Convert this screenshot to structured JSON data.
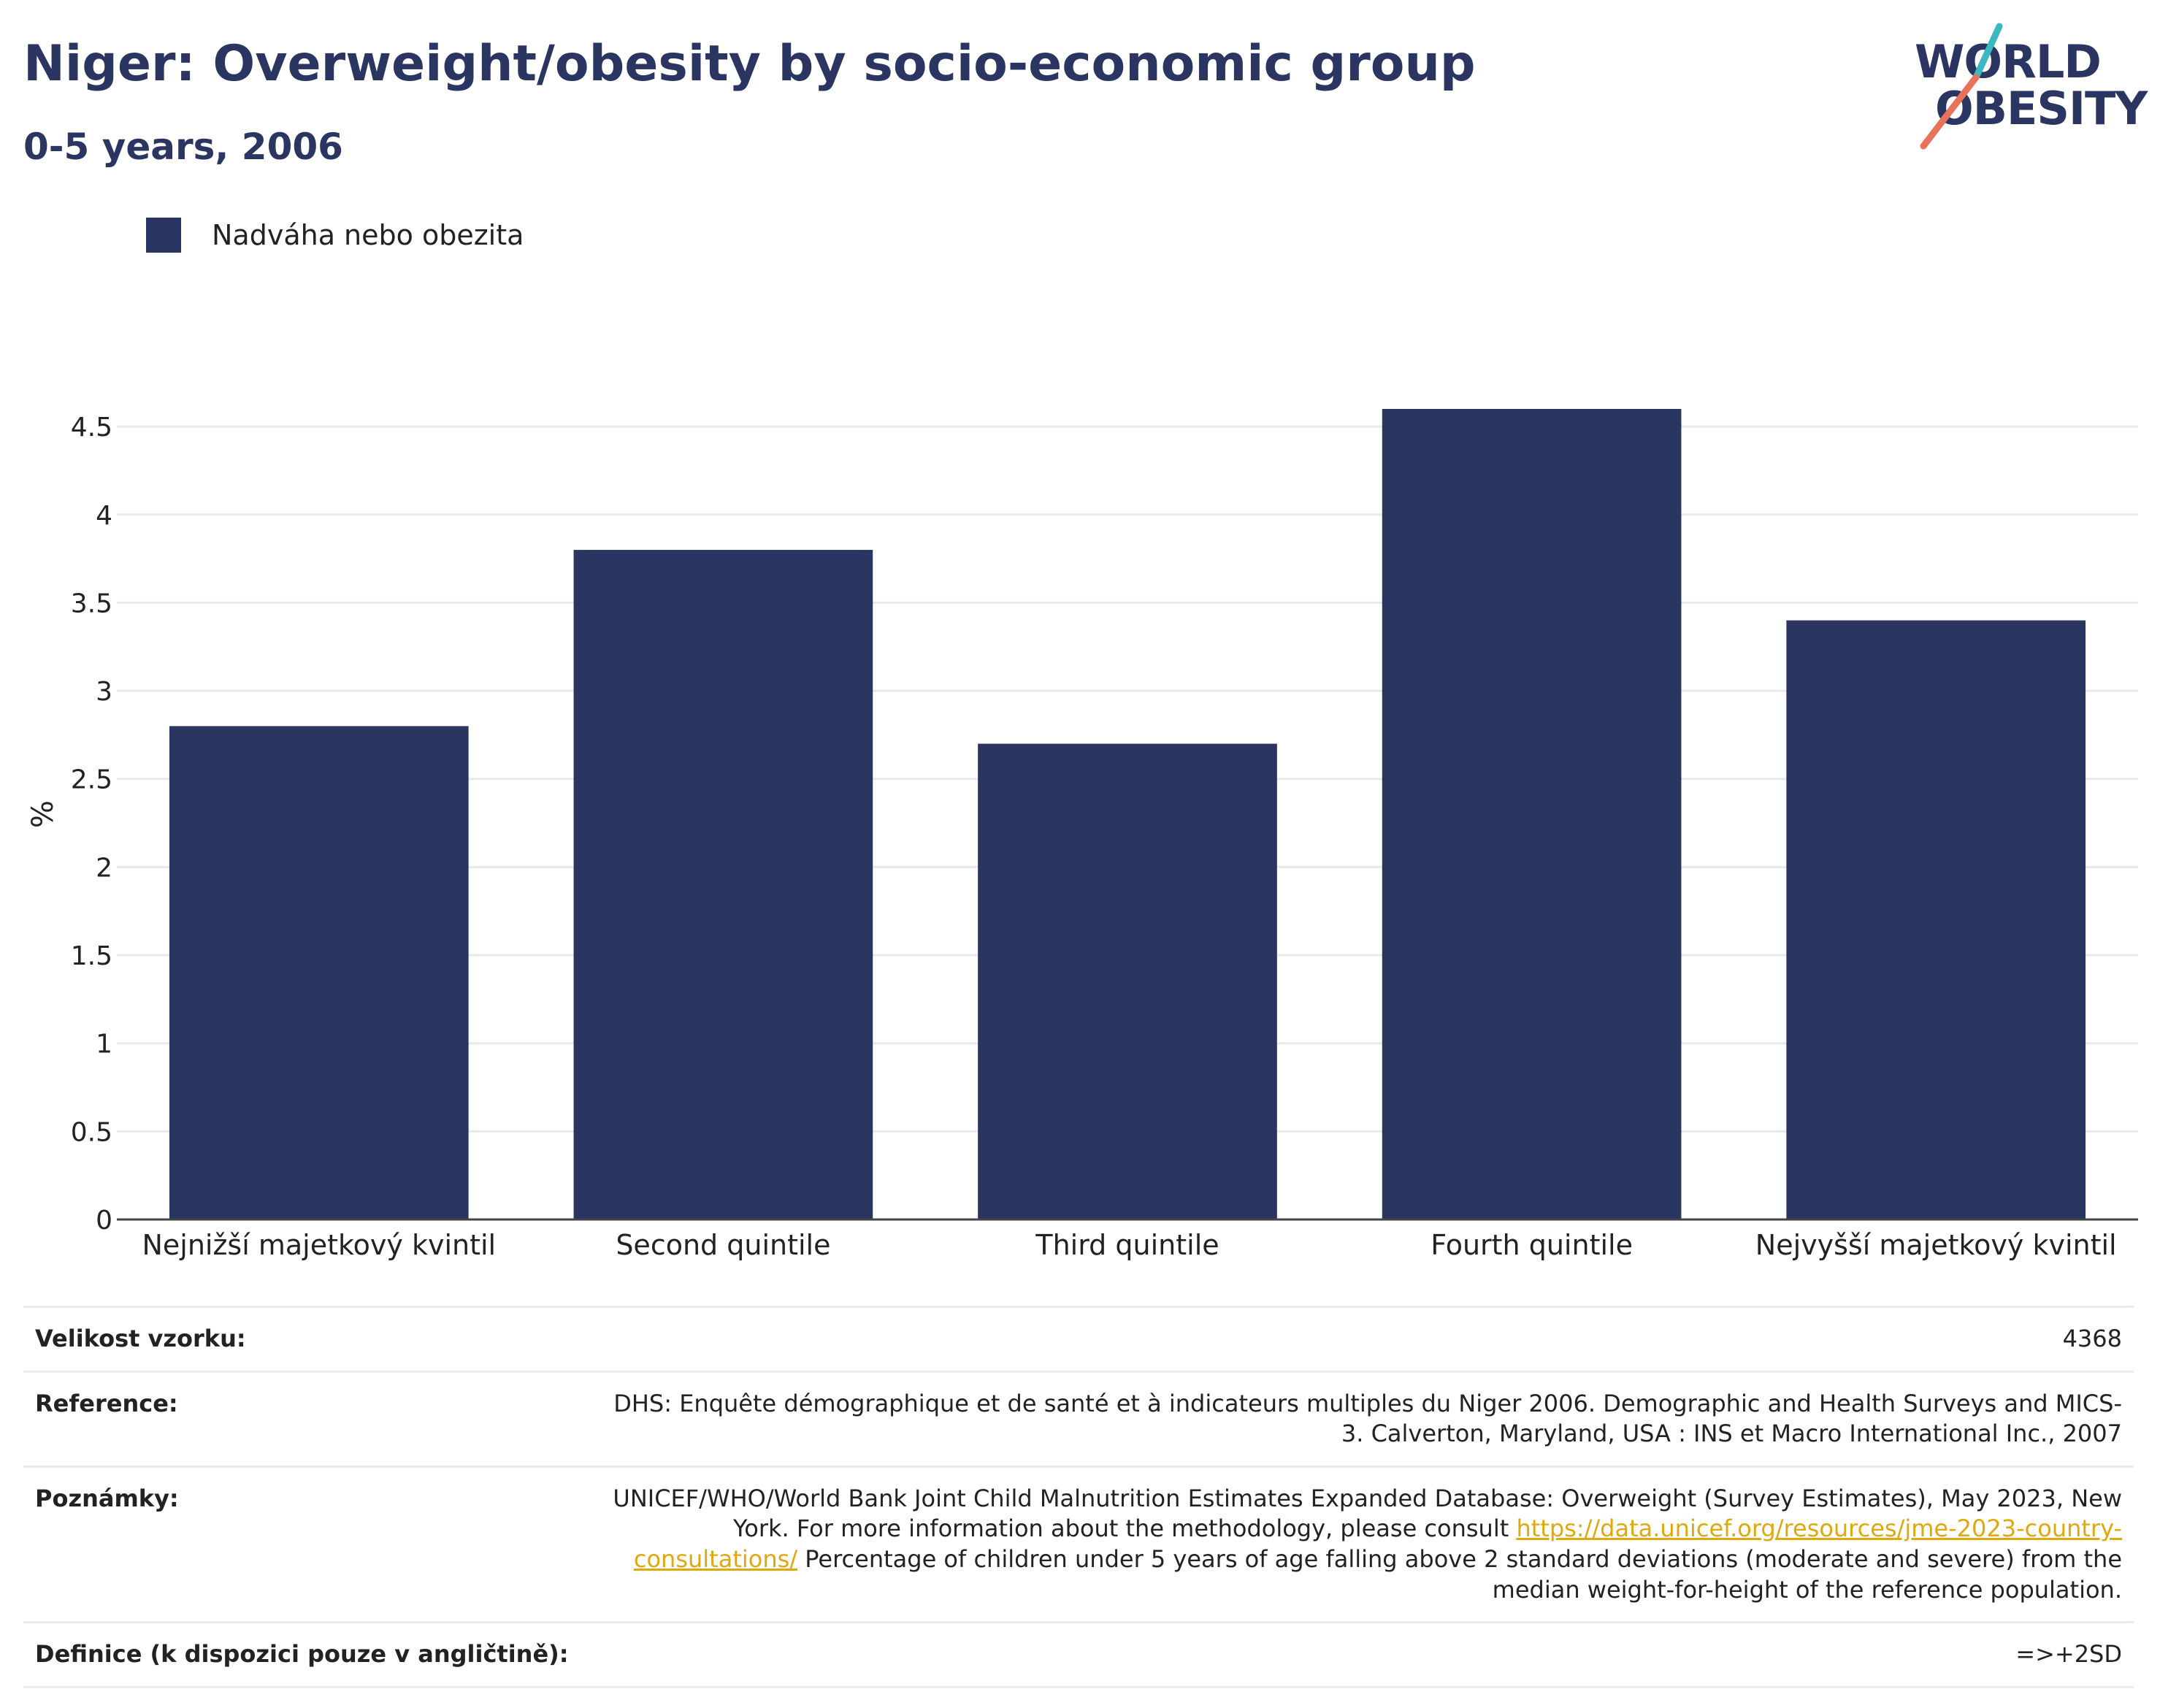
{
  "header": {
    "title": "Niger: Overweight/obesity by socio-economic group",
    "subtitle": "0-5 years, 2006"
  },
  "logo": {
    "line1": "WORLD",
    "line2": "OBESITY",
    "colors": {
      "text": "#2b3561",
      "slash_top": "#3bb9c0",
      "slash_bottom": "#e8735a"
    }
  },
  "chart_data": {
    "type": "bar",
    "categories": [
      "Nejnižší majetkový kvintil",
      "Second quintile",
      "Third quintile",
      "Fourth quintile",
      "Nejvyšší majetkový kvintil"
    ],
    "series": [
      {
        "name": "Nadváha nebo obezita",
        "values": [
          2.8,
          3.8,
          2.7,
          4.6,
          3.4
        ],
        "color": "#2b3561"
      }
    ],
    "xlabel": "",
    "ylabel": "%",
    "ylim": [
      0,
      4.6
    ],
    "yticks": [
      0,
      0.5,
      1,
      1.5,
      2,
      2.5,
      3,
      3.5,
      4,
      4.5
    ],
    "ytick_labels": [
      "0",
      "0.5",
      "1",
      "1.5",
      "2",
      "2.5",
      "3",
      "3.5",
      "4",
      "4.5"
    ],
    "grid": true,
    "legend_position": "top-left"
  },
  "info": {
    "sample_size_label": "Velikost vzorku:",
    "sample_size_value": "4368",
    "reference_label": "Reference:",
    "reference_value": "DHS: Enquête démographique et de santé et à indicateurs multiples du Niger 2006. Demographic and Health Surveys and MICS-3. Calverton, Maryland, USA : INS et Macro International Inc., 2007",
    "notes_label": "Poznámky:",
    "notes_text_1": "UNICEF/WHO/World Bank Joint Child Malnutrition Estimates Expanded Database: Overweight (Survey Estimates), May 2023, New York. For more information about the methodology, please consult",
    "notes_link": "https://data.unicef.org/resources/jme-2023-country-consultations/",
    "notes_text_2": "Percentage of children under 5 years of age falling above 2 standard deviations (moderate and severe) from the median weight-for-height of the reference population.",
    "definition_label": "Definice (k dispozici pouze v angličtině):",
    "definition_value": "=>+2SD"
  }
}
